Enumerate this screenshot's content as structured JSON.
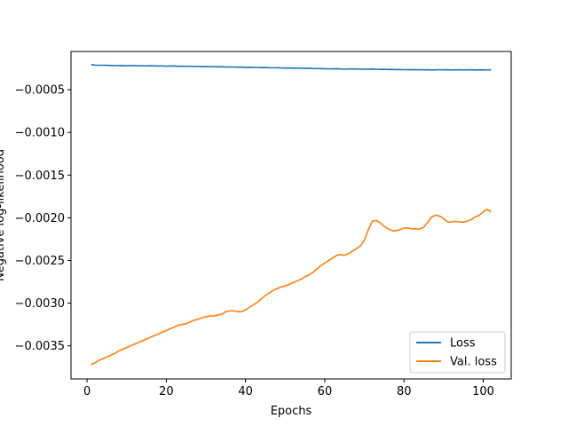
{
  "chart_data": {
    "type": "line",
    "title": "",
    "xlabel": "Epochs",
    "ylabel": "Negative log-likelihood",
    "xlim": [
      -4.05,
      107.05
    ],
    "ylim": [
      -0.003888,
      -5.2e-05
    ],
    "xticks": [
      0,
      20,
      40,
      60,
      80,
      100
    ],
    "xtick_labels": [
      "0",
      "20",
      "40",
      "60",
      "80",
      "100"
    ],
    "yticks": [
      -0.0035,
      -0.003,
      -0.0025,
      -0.002,
      -0.0015,
      -0.001,
      -0.0005
    ],
    "ytick_labels": [
      "−0.0035",
      "−0.0030",
      "−0.0025",
      "−0.0020",
      "−0.0015",
      "−0.0010",
      "−0.0005"
    ],
    "grid": false,
    "legend_position": "lower-right",
    "colors": {
      "Loss": "#1f77b4",
      "Val. loss": "#ff7f0e"
    },
    "series": [
      {
        "name": "Loss",
        "x": [
          1,
          2,
          3,
          4,
          5,
          6,
          7,
          8,
          9,
          10,
          11,
          12,
          13,
          14,
          15,
          16,
          17,
          18,
          19,
          20,
          21,
          22,
          23,
          24,
          25,
          26,
          27,
          28,
          29,
          30,
          31,
          32,
          33,
          34,
          35,
          36,
          37,
          38,
          39,
          40,
          41,
          42,
          43,
          44,
          45,
          46,
          47,
          48,
          49,
          50,
          51,
          52,
          53,
          54,
          55,
          56,
          57,
          58,
          59,
          60,
          61,
          62,
          63,
          64,
          65,
          66,
          67,
          68,
          69,
          70,
          71,
          72,
          73,
          74,
          75,
          76,
          77,
          78,
          79,
          80,
          81,
          82,
          83,
          84,
          85,
          86,
          87,
          88,
          89,
          90,
          91,
          92,
          93,
          94,
          95,
          96,
          97,
          98,
          99,
          100,
          101,
          102
        ],
        "y": [
          -0.000205,
          -0.000212,
          -0.000213,
          -0.000213,
          -0.000214,
          -0.000216,
          -0.000217,
          -0.000218,
          -0.000216,
          -0.000219,
          -0.000218,
          -0.000217,
          -0.00022,
          -0.00022,
          -0.000221,
          -0.000219,
          -0.000221,
          -0.000223,
          -0.000221,
          -0.000224,
          -0.000223,
          -0.000222,
          -0.000225,
          -0.000224,
          -0.000226,
          -0.000225,
          -0.000227,
          -0.000226,
          -0.000229,
          -0.000228,
          -0.00023,
          -0.000229,
          -0.000232,
          -0.000231,
          -0.000234,
          -0.000233,
          -0.000235,
          -0.000236,
          -0.000235,
          -0.000238,
          -0.000237,
          -0.000239,
          -0.000238,
          -0.000241,
          -0.00024,
          -0.000242,
          -0.000243,
          -0.000242,
          -0.000245,
          -0.000246,
          -0.000245,
          -0.000248,
          -0.000247,
          -0.000249,
          -0.00025,
          -0.000248,
          -0.000251,
          -0.000252,
          -0.000253,
          -0.000254,
          -0.000256,
          -0.000255,
          -0.000254,
          -0.000257,
          -0.000259,
          -0.000256,
          -0.000258,
          -0.000256,
          -0.00026,
          -0.000259,
          -0.000261,
          -0.000258,
          -0.00026,
          -0.000262,
          -0.000261,
          -0.000263,
          -0.000262,
          -0.000264,
          -0.000263,
          -0.000265,
          -0.000266,
          -0.000264,
          -0.000266,
          -0.000265,
          -0.000267,
          -0.000266,
          -0.000268,
          -0.000267,
          -0.000265,
          -0.000267,
          -0.000266,
          -0.000268,
          -0.000267,
          -0.000266,
          -0.000268,
          -0.000267,
          -0.000266,
          -0.000268,
          -0.000267,
          -0.000268,
          -0.000269,
          -0.000266
        ]
      },
      {
        "name": "Val. loss",
        "x": [
          1,
          2,
          3,
          4,
          5,
          6,
          7,
          8,
          9,
          10,
          11,
          12,
          13,
          14,
          15,
          16,
          17,
          18,
          19,
          20,
          21,
          22,
          23,
          24,
          25,
          26,
          27,
          28,
          29,
          30,
          31,
          32,
          33,
          34,
          35,
          36,
          37,
          38,
          39,
          40,
          41,
          42,
          43,
          44,
          45,
          46,
          47,
          48,
          49,
          50,
          51,
          52,
          53,
          54,
          55,
          56,
          57,
          58,
          59,
          60,
          61,
          62,
          63,
          64,
          65,
          66,
          67,
          68,
          69,
          70,
          71,
          72,
          73,
          74,
          75,
          76,
          77,
          78,
          79,
          80,
          81,
          82,
          83,
          84,
          85,
          86,
          87,
          88,
          89,
          90,
          91,
          92,
          93,
          94,
          95,
          96,
          97,
          98,
          99,
          100,
          101,
          102
        ],
        "y": [
          -0.00372,
          -0.0037,
          -0.00367,
          -0.00365,
          -0.00363,
          -0.00361,
          -0.00359,
          -0.00356,
          -0.00354,
          -0.00352,
          -0.0035,
          -0.00348,
          -0.00346,
          -0.00344,
          -0.00342,
          -0.0034,
          -0.00338,
          -0.00336,
          -0.00334,
          -0.00332,
          -0.0033,
          -0.00328,
          -0.00326,
          -0.00325,
          -0.00324,
          -0.00322,
          -0.0032,
          -0.00319,
          -0.00317,
          -0.00316,
          -0.00315,
          -0.00315,
          -0.00314,
          -0.00313,
          -0.0031,
          -0.00309,
          -0.00309,
          -0.0031,
          -0.0031,
          -0.00308,
          -0.00305,
          -0.00302,
          -0.00299,
          -0.00295,
          -0.00291,
          -0.00288,
          -0.00285,
          -0.00283,
          -0.00281,
          -0.0028,
          -0.00278,
          -0.00276,
          -0.00274,
          -0.00272,
          -0.00269,
          -0.00267,
          -0.00264,
          -0.0026,
          -0.00256,
          -0.00253,
          -0.0025,
          -0.00247,
          -0.00244,
          -0.00243,
          -0.00244,
          -0.00242,
          -0.00239,
          -0.00236,
          -0.00233,
          -0.00226,
          -0.00214,
          -0.00204,
          -0.00203,
          -0.00206,
          -0.0021,
          -0.00213,
          -0.00215,
          -0.00215,
          -0.00214,
          -0.00212,
          -0.00212,
          -0.00213,
          -0.00213,
          -0.00213,
          -0.00211,
          -0.00205,
          -0.00199,
          -0.00197,
          -0.00198,
          -0.00201,
          -0.00205,
          -0.00205,
          -0.00204,
          -0.00205,
          -0.00205,
          -0.00204,
          -0.00202,
          -0.00199,
          -0.00197,
          -0.00193,
          -0.0019,
          -0.00193
        ]
      }
    ]
  }
}
